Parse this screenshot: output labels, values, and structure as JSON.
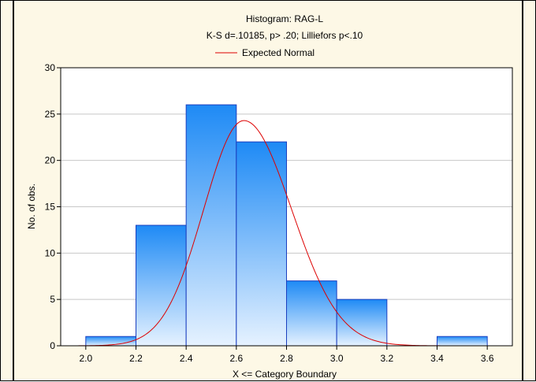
{
  "chart_data": {
    "type": "bar",
    "title": "Histogram: RAG-L",
    "subtitle": "K-S d=.10185, p> .20; Lilliefors p<.10",
    "legend_label": "Expected Normal",
    "xlabel": "X <= Category Boundary",
    "ylabel": "No. of obs.",
    "xlim": [
      1.9,
      3.7
    ],
    "ylim": [
      0,
      30
    ],
    "x_ticks": [
      "2.0",
      "2.2",
      "2.4",
      "2.6",
      "2.8",
      "3.0",
      "3.2",
      "3.4",
      "3.6"
    ],
    "y_ticks": [
      "0",
      "5",
      "10",
      "15",
      "20",
      "25",
      "30"
    ],
    "bins": [
      {
        "from": 2.0,
        "to": 2.2,
        "count": 1
      },
      {
        "from": 2.2,
        "to": 2.4,
        "count": 13
      },
      {
        "from": 2.4,
        "to": 2.6,
        "count": 26
      },
      {
        "from": 2.6,
        "to": 2.8,
        "count": 22
      },
      {
        "from": 2.8,
        "to": 3.0,
        "count": 7
      },
      {
        "from": 3.0,
        "to": 3.2,
        "count": 5
      },
      {
        "from": 3.2,
        "to": 3.4,
        "count": 0
      },
      {
        "from": 3.4,
        "to": 3.6,
        "count": 1
      }
    ],
    "expected_normal": {
      "peak": 24.3,
      "peak_x": 2.63,
      "sd_left": 0.16,
      "sd_right": 0.19
    },
    "grid": true,
    "legend_position": "top-center",
    "colors": {
      "bar_top": "#1e8af5",
      "bar_bottom": "#e6f2ff",
      "bar_edge": "#1b3fbf",
      "curve": "#dd0000",
      "plot_bg": "#ffffff"
    }
  }
}
